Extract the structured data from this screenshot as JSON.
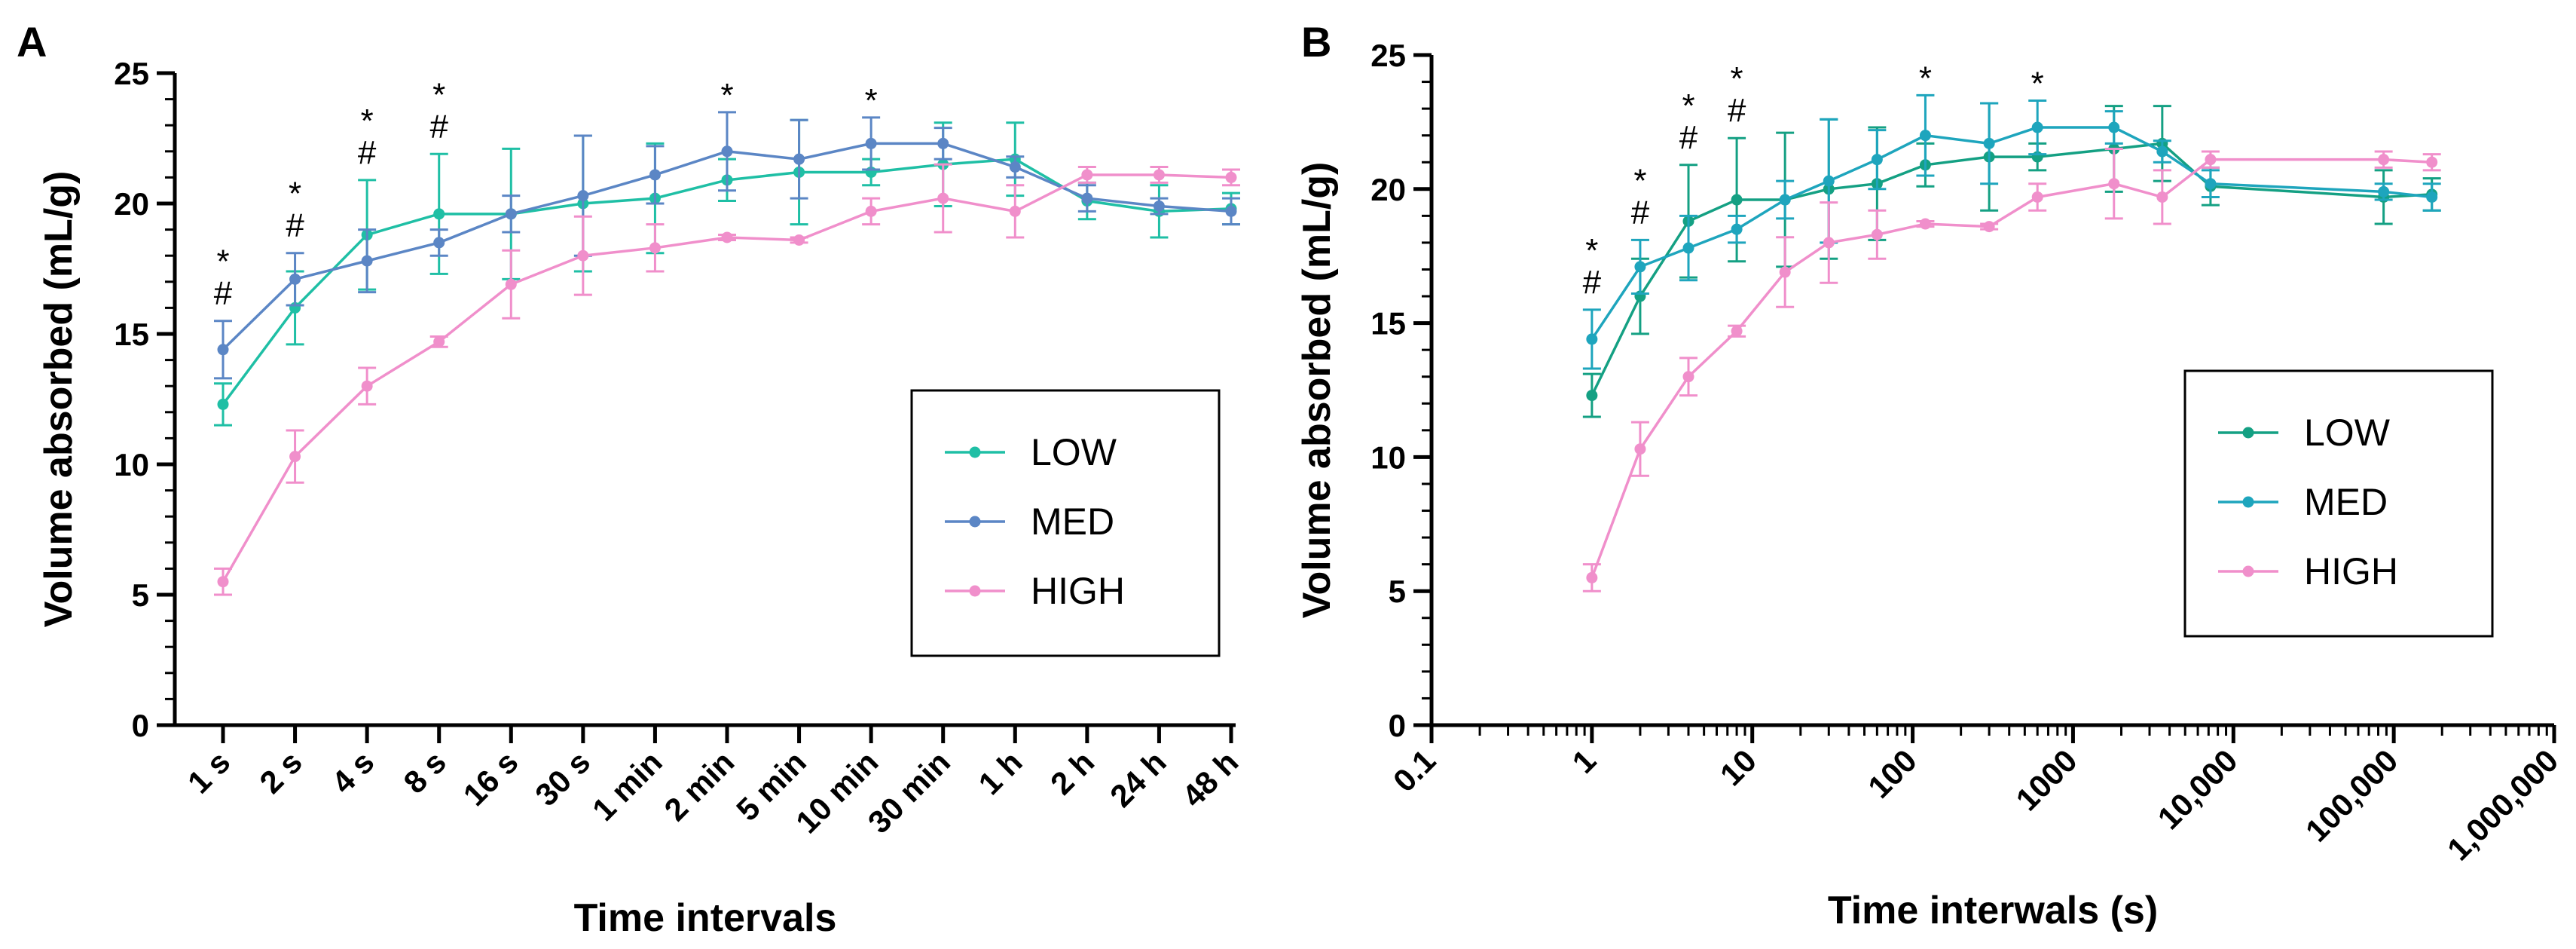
{
  "colors": {
    "low": "#1fbfa5",
    "med": "#5b86c5",
    "high": "#f08fcb",
    "low_b": "#14a083",
    "med_b": "#1ea5bd",
    "high_b": "#f08fcb"
  },
  "chart_data": [
    {
      "type": "line",
      "panel_label": "A",
      "xlabel": "Time intervals",
      "ylabel": "Volume absorbed (mL/g)",
      "ylim": [
        0,
        25
      ],
      "yticks": [
        0,
        5,
        10,
        15,
        20,
        25
      ],
      "categories": [
        "1 s",
        "2 s",
        "4 s",
        "8 s",
        "16 s",
        "30 s",
        "1 min",
        "2 min",
        "5 min",
        "10 min",
        "30 min",
        "1 h",
        "2 h",
        "24 h",
        "48 h"
      ],
      "series": [
        {
          "name": "LOW",
          "color_key": "low",
          "values": [
            12.3,
            16.0,
            18.8,
            19.6,
            19.6,
            20.0,
            20.2,
            20.9,
            21.2,
            21.2,
            21.5,
            21.7,
            20.1,
            19.7,
            19.8
          ],
          "errors": [
            0.8,
            1.4,
            2.1,
            2.3,
            2.5,
            2.6,
            2.1,
            0.8,
            2.0,
            0.5,
            1.6,
            1.4,
            0.7,
            1.0,
            0.6
          ]
        },
        {
          "name": "MED",
          "color_key": "med",
          "values": [
            14.4,
            17.1,
            17.8,
            18.5,
            19.6,
            20.3,
            21.1,
            22.0,
            21.7,
            22.3,
            22.3,
            21.4,
            20.2,
            19.9,
            19.7
          ],
          "errors": [
            1.1,
            1.0,
            1.2,
            0.5,
            0.7,
            2.3,
            1.1,
            1.5,
            1.5,
            1.0,
            0.6,
            0.4,
            0.5,
            0.3,
            0.5
          ]
        },
        {
          "name": "HIGH",
          "color_key": "high",
          "values": [
            5.5,
            10.3,
            13.0,
            14.7,
            16.9,
            18.0,
            18.3,
            18.7,
            18.6,
            19.7,
            20.2,
            19.7,
            21.1,
            21.1,
            21.0
          ],
          "errors": [
            0.5,
            1.0,
            0.7,
            0.2,
            1.3,
            1.5,
            0.9,
            0.1,
            0.1,
            0.5,
            1.3,
            1.0,
            0.3,
            0.3,
            0.3
          ]
        }
      ],
      "annotations": [
        {
          "index": 0,
          "marks": [
            "*",
            "#"
          ]
        },
        {
          "index": 1,
          "marks": [
            "*",
            "#"
          ]
        },
        {
          "index": 2,
          "marks": [
            "*",
            "#"
          ]
        },
        {
          "index": 3,
          "marks": [
            "*",
            "#"
          ]
        },
        {
          "index": 7,
          "marks": [
            "*"
          ]
        },
        {
          "index": 9,
          "marks": [
            "*"
          ]
        }
      ],
      "legend": [
        "LOW",
        "MED",
        "HIGH"
      ]
    },
    {
      "type": "line",
      "panel_label": "B",
      "xlabel": "Time interwals (s)",
      "ylabel": "Volume absorbed (mL/g)",
      "xscale": "log",
      "xlim": [
        0.1,
        1000000
      ],
      "ylim": [
        0,
        25
      ],
      "yticks": [
        0,
        5,
        10,
        15,
        20,
        25
      ],
      "xticks": [
        0.1,
        1,
        10,
        100,
        1000,
        10000,
        100000,
        1000000
      ],
      "xtick_labels": [
        "0.1",
        "1",
        "10",
        "100",
        "1000",
        "10,000",
        "100,000",
        "1,000,000"
      ],
      "x": [
        1,
        2,
        4,
        8,
        16,
        30,
        60,
        120,
        300,
        600,
        1800,
        3600,
        7200,
        86400,
        172800
      ],
      "series": [
        {
          "name": "LOW",
          "color_key": "low_b",
          "values": [
            12.3,
            16.0,
            18.8,
            19.6,
            19.6,
            20.0,
            20.2,
            20.9,
            21.2,
            21.2,
            21.5,
            21.7,
            20.1,
            19.7,
            19.8
          ],
          "errors": [
            0.8,
            1.4,
            2.1,
            2.3,
            2.5,
            2.6,
            2.1,
            0.8,
            2.0,
            0.5,
            1.6,
            1.4,
            0.7,
            1.0,
            0.6
          ]
        },
        {
          "name": "MED",
          "color_key": "med_b",
          "values": [
            14.4,
            17.1,
            17.8,
            18.5,
            19.6,
            20.3,
            21.1,
            22.0,
            21.7,
            22.3,
            22.3,
            21.4,
            20.2,
            19.9,
            19.7
          ],
          "errors": [
            1.1,
            1.0,
            1.2,
            0.5,
            0.7,
            2.3,
            1.1,
            1.5,
            1.5,
            1.0,
            0.6,
            0.4,
            0.5,
            0.3,
            0.5
          ]
        },
        {
          "name": "HIGH",
          "color_key": "high_b",
          "values": [
            5.5,
            10.3,
            13.0,
            14.7,
            16.9,
            18.0,
            18.3,
            18.7,
            18.6,
            19.7,
            20.2,
            19.7,
            21.1,
            21.1,
            21.0
          ],
          "errors": [
            0.5,
            1.0,
            0.7,
            0.2,
            1.3,
            1.5,
            0.9,
            0.1,
            0.1,
            0.5,
            1.3,
            1.0,
            0.3,
            0.3,
            0.3
          ]
        }
      ],
      "annotations": [
        {
          "index": 0,
          "marks": [
            "*",
            "#"
          ]
        },
        {
          "index": 1,
          "marks": [
            "*",
            "#"
          ]
        },
        {
          "index": 2,
          "marks": [
            "*",
            "#"
          ]
        },
        {
          "index": 3,
          "marks": [
            "*",
            "#"
          ]
        },
        {
          "index": 7,
          "marks": [
            "*"
          ]
        },
        {
          "index": 9,
          "marks": [
            "*"
          ]
        }
      ],
      "legend": [
        "LOW",
        "MED",
        "HIGH"
      ]
    }
  ]
}
